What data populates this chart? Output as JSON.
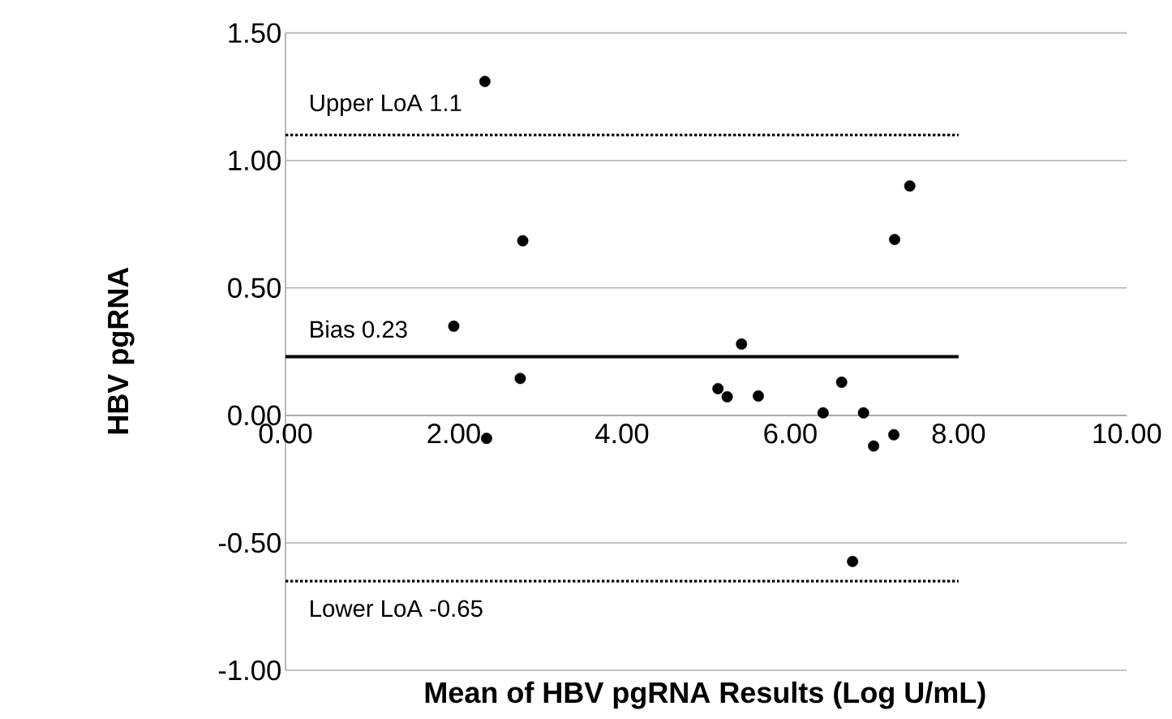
{
  "chart_data": {
    "type": "scatter",
    "xlabel": "Mean of HBV pgRNA Results (Log U/mL)",
    "ylabel": "HBV pgRNA",
    "xlim": [
      0,
      10
    ],
    "ylim": [
      -1,
      1.5
    ],
    "xticks": [
      {
        "value": 0,
        "label": "0.00"
      },
      {
        "value": 2,
        "label": "2.00"
      },
      {
        "value": 4,
        "label": "4.00"
      },
      {
        "value": 6,
        "label": "6.00"
      },
      {
        "value": 8,
        "label": "8.00"
      },
      {
        "value": 10,
        "label": "10.00"
      }
    ],
    "yticks": [
      {
        "value": -1,
        "label": "-1.00"
      },
      {
        "value": -0.5,
        "label": "-0.50"
      },
      {
        "value": 0,
        "label": "0.00"
      },
      {
        "value": 0.5,
        "label": "0.50"
      },
      {
        "value": 1,
        "label": "1.00"
      },
      {
        "value": 1.5,
        "label": "1.50"
      }
    ],
    "grid": "y",
    "marker": "circle",
    "series": [
      {
        "type": "scatter",
        "color": "#000000",
        "x": [
          2.37,
          2.82,
          2.0,
          2.79,
          2.39,
          5.14,
          5.25,
          5.42,
          5.62,
          6.39,
          6.61,
          6.87,
          6.74,
          6.99,
          7.23,
          7.24,
          7.42
        ],
        "values": [
          1.31,
          0.685,
          0.35,
          0.145,
          -0.09,
          0.105,
          0.073,
          0.28,
          0.076,
          0.01,
          0.13,
          0.01,
          -0.573,
          -0.12,
          -0.076,
          0.69,
          0.9
        ]
      },
      {
        "type": "line",
        "name": "Upper LoA 1.1",
        "color": "#000000",
        "marker": "none",
        "line_style": "dotted",
        "x": [
          0,
          8
        ],
        "values": [
          1.1,
          1.1
        ]
      },
      {
        "type": "line",
        "name": "Bias 0.23",
        "color": "#000000",
        "marker": "none",
        "line_style": "solid",
        "x": [
          0,
          8
        ],
        "values": [
          0.23,
          0.23
        ]
      },
      {
        "type": "line",
        "name": "Lower LoA -0.65",
        "color": "#000000",
        "marker": "none",
        "line_style": "dotted",
        "x": [
          0,
          8
        ],
        "values": [
          -0.65,
          -0.65
        ]
      }
    ]
  }
}
